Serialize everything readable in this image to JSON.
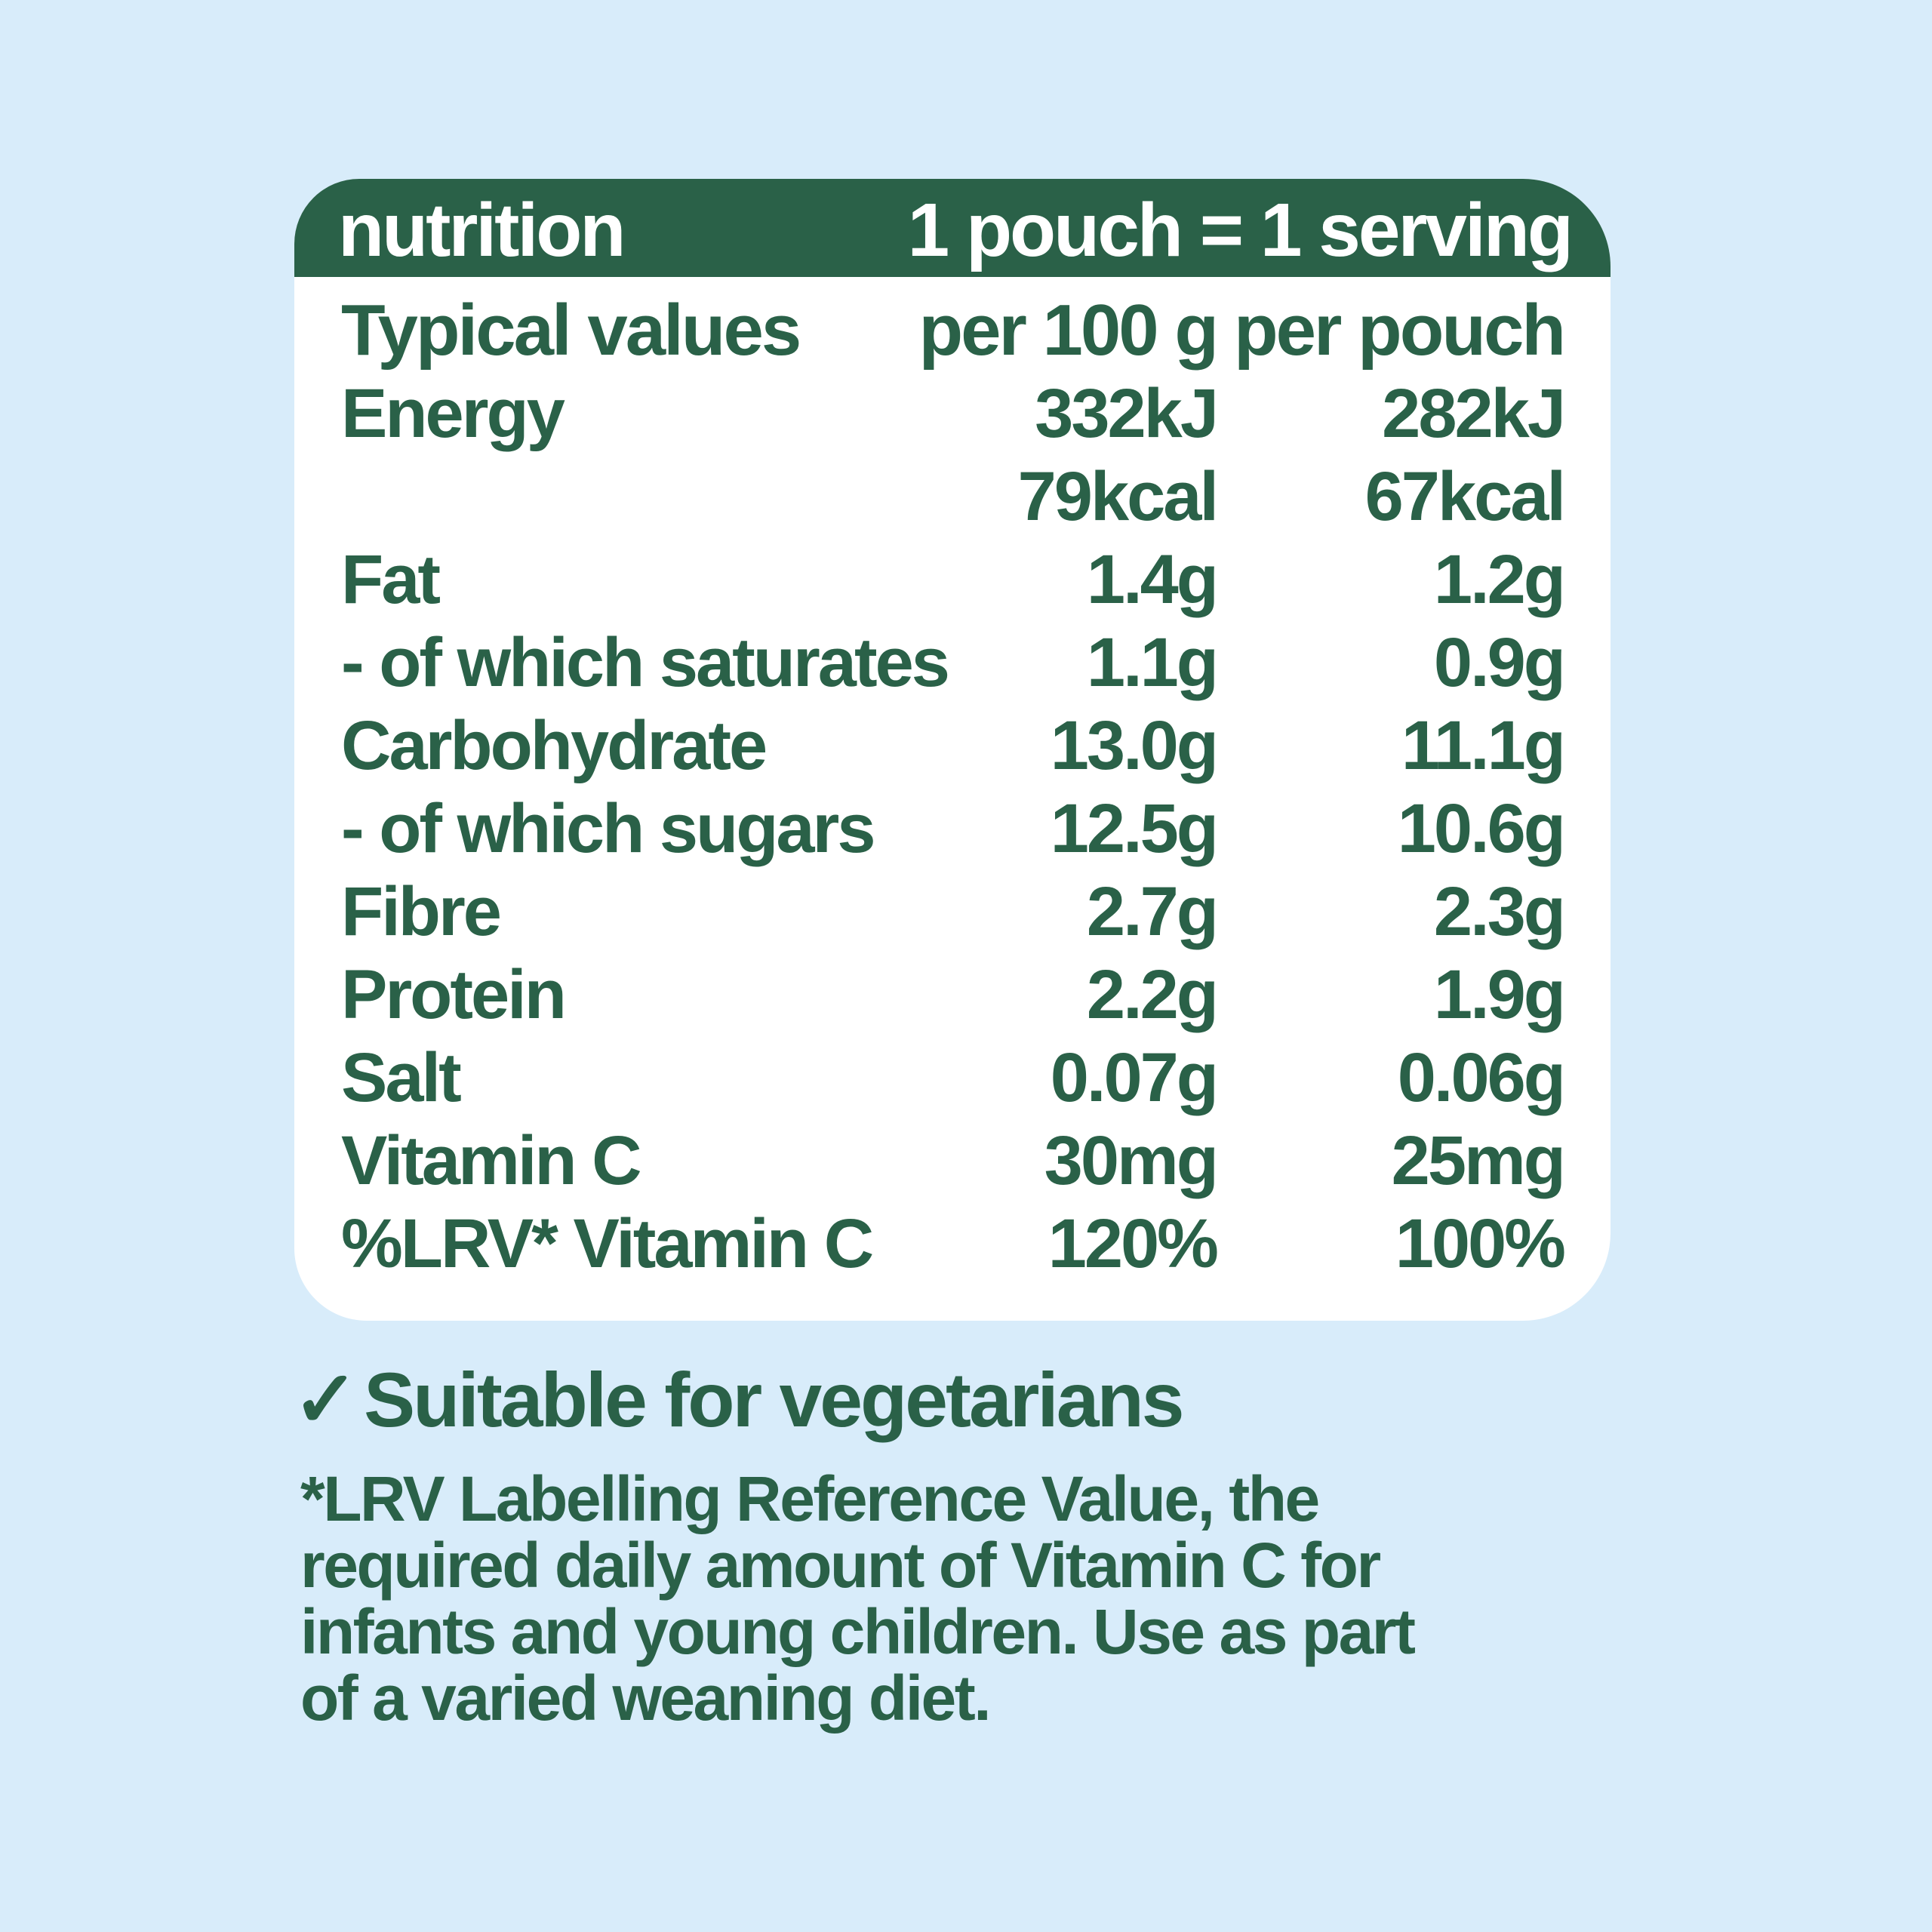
{
  "colors": {
    "background": "#d8ecfa",
    "card": "#ffffff",
    "green": "#2a6148",
    "header_text": "#ffffff"
  },
  "header": {
    "title": "nutrition",
    "serving_note": "1 pouch = 1 serving"
  },
  "table": {
    "columns": [
      "Typical values",
      "per 100 g",
      "per pouch"
    ],
    "rows": [
      {
        "label": "Energy",
        "per100": "332kJ",
        "pouch": "282kJ"
      },
      {
        "label": "",
        "per100": "79kcal",
        "pouch": "67kcal"
      },
      {
        "label": "Fat",
        "per100": "1.4g",
        "pouch": "1.2g"
      },
      {
        "label": "- of which saturates",
        "per100": "1.1g",
        "pouch": "0.9g"
      },
      {
        "label": "Carbohydrate",
        "per100": "13.0g",
        "pouch": "11.1g"
      },
      {
        "label": "- of which sugars",
        "per100": "12.5g",
        "pouch": "10.6g"
      },
      {
        "label": "Fibre",
        "per100": "2.7g",
        "pouch": "2.3g"
      },
      {
        "label": "Protein",
        "per100": "2.2g",
        "pouch": "1.9g"
      },
      {
        "label": "Salt",
        "per100": "0.07g",
        "pouch": "0.06g"
      },
      {
        "label": "Vitamin C",
        "per100": "30mg",
        "pouch": "25mg"
      },
      {
        "label": "%LRV* Vitamin C",
        "per100": "120%",
        "pouch": "100%"
      }
    ]
  },
  "footer": {
    "check_icon": "✓",
    "vegetarian": "Suitable for vegetarians",
    "footnote_lines": [
      "*LRV Labelling Reference Value, the",
      "required daily amount of Vitamin C for",
      "infants and young children. Use as part",
      "of a varied weaning diet."
    ]
  }
}
